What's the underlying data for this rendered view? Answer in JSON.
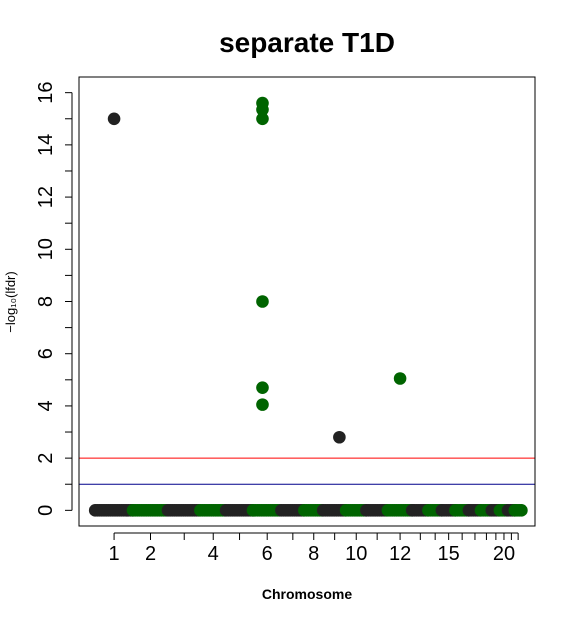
{
  "chart_data": {
    "type": "scatter",
    "title": "separate T1D",
    "xlabel": "Chromosome",
    "ylabel": "−log₁₀(lfdr)",
    "ylim": [
      -0.6,
      16.6
    ],
    "y_ticks": [
      0,
      2,
      4,
      6,
      8,
      10,
      12,
      14,
      16
    ],
    "x_tick_labels": [
      "1",
      "2",
      "4",
      "6",
      "8",
      "10",
      "12",
      "15",
      "20"
    ],
    "x_axis": "chromosome (1–22), alternating colors by chromosome",
    "grid": false,
    "legend": "none",
    "thresholds": [
      {
        "y": 2,
        "color": "#ff0000"
      },
      {
        "y": 1,
        "color": "#00008b"
      }
    ],
    "colors": {
      "odd": "#222222",
      "even": "#006400"
    },
    "chromosomes": [
      {
        "chr": 1,
        "span": [
          0.0,
          1.4
        ]
      },
      {
        "chr": 2,
        "span": [
          1.4,
          2.7
        ]
      },
      {
        "chr": 3,
        "span": [
          2.7,
          3.9
        ]
      },
      {
        "chr": 4,
        "span": [
          3.9,
          4.85
        ]
      },
      {
        "chr": 5,
        "span": [
          4.85,
          5.85
        ]
      },
      {
        "chr": 6,
        "span": [
          5.85,
          6.9
        ]
      },
      {
        "chr": 7,
        "span": [
          6.9,
          7.75
        ]
      },
      {
        "chr": 8,
        "span": [
          7.75,
          8.45
        ]
      },
      {
        "chr": 9,
        "span": [
          8.45,
          9.3
        ]
      },
      {
        "chr": 10,
        "span": [
          9.3,
          10.05
        ]
      },
      {
        "chr": 11,
        "span": [
          10.05,
          10.85
        ]
      },
      {
        "chr": 12,
        "span": [
          10.85,
          11.75
        ]
      },
      {
        "chr": 13,
        "span": [
          11.75,
          12.35
        ]
      },
      {
        "chr": 14,
        "span": [
          12.35,
          12.85
        ]
      },
      {
        "chr": 15,
        "span": [
          12.85,
          13.35
        ]
      },
      {
        "chr": 16,
        "span": [
          13.35,
          13.85
        ]
      },
      {
        "chr": 17,
        "span": [
          13.85,
          14.3
        ]
      },
      {
        "chr": 18,
        "span": [
          14.3,
          14.7
        ]
      },
      {
        "chr": 19,
        "span": [
          14.7,
          15.0
        ]
      },
      {
        "chr": 20,
        "span": [
          15.0,
          15.3
        ]
      },
      {
        "chr": 21,
        "span": [
          15.3,
          15.55
        ]
      },
      {
        "chr": 22,
        "span": [
          15.55,
          15.8
        ]
      }
    ],
    "significant_points": [
      {
        "chr": 1,
        "x": 0.7,
        "y": 15.0
      },
      {
        "chr": 6,
        "x": 6.2,
        "y": 15.6
      },
      {
        "chr": 6,
        "x": 6.2,
        "y": 15.35
      },
      {
        "chr": 6,
        "x": 6.2,
        "y": 15.0
      },
      {
        "chr": 6,
        "x": 6.2,
        "y": 8.0
      },
      {
        "chr": 6,
        "x": 6.2,
        "y": 4.7
      },
      {
        "chr": 6,
        "x": 6.2,
        "y": 4.05
      },
      {
        "chr": 9,
        "x": 9.05,
        "y": 2.8
      },
      {
        "chr": 12,
        "x": 11.3,
        "y": 5.05
      }
    ]
  }
}
